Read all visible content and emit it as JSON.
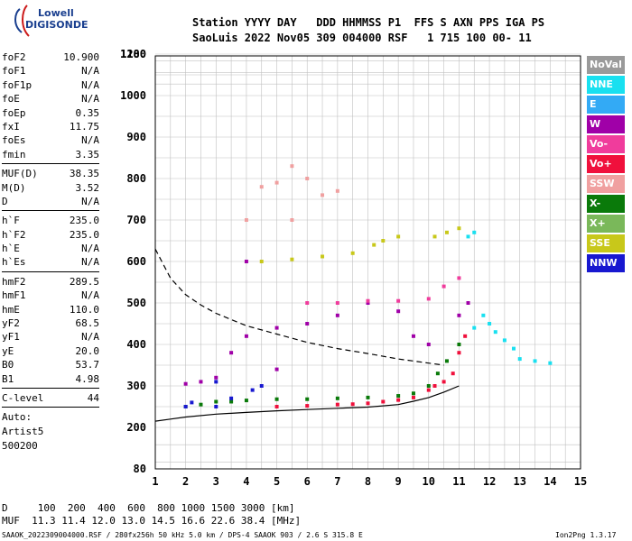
{
  "logo": {
    "line1": "Lowell",
    "line2": "DIGISONDE"
  },
  "header": {
    "line1": "Station YYYY DAY   DDD HHMMSS P1  FFS S AXN PPS IGA PS",
    "line2": "SaoLuis 2022 Nov05 309 004000 RSF   1 715 100 00- 11"
  },
  "params": [
    [
      {
        "k": "foF2",
        "v": "10.900"
      },
      {
        "k": "foF1",
        "v": "N/A"
      },
      {
        "k": "foF1p",
        "v": "N/A"
      },
      {
        "k": "foE",
        "v": "N/A"
      },
      {
        "k": "foEp",
        "v": "0.35"
      },
      {
        "k": "fxI",
        "v": "11.75"
      },
      {
        "k": "foEs",
        "v": "N/A"
      },
      {
        "k": "fmin",
        "v": "3.35"
      }
    ],
    [
      {
        "k": "MUF(D)",
        "v": "38.35"
      },
      {
        "k": "M(D)",
        "v": "3.52"
      },
      {
        "k": "D",
        "v": "N/A"
      }
    ],
    [
      {
        "k": "h`F",
        "v": "235.0"
      },
      {
        "k": "h`F2",
        "v": "235.0"
      },
      {
        "k": "h`E",
        "v": "N/A"
      },
      {
        "k": "h`Es",
        "v": "N/A"
      }
    ],
    [
      {
        "k": "hmF2",
        "v": "289.5"
      },
      {
        "k": "hmF1",
        "v": "N/A"
      },
      {
        "k": "hmE",
        "v": "110.0"
      },
      {
        "k": "yF2",
        "v": "68.5"
      },
      {
        "k": "yF1",
        "v": "N/A"
      },
      {
        "k": "yE",
        "v": "20.0"
      },
      {
        "k": "B0",
        "v": "53.7"
      },
      {
        "k": "B1",
        "v": "4.98"
      }
    ],
    [
      {
        "k": "C-level",
        "v": "44"
      }
    ]
  ],
  "auto": {
    "l1": "Auto:",
    "l2": "Artist5",
    "l3": "500200"
  },
  "legend": [
    {
      "label": "NoVal",
      "color": "#9a9a9a"
    },
    {
      "label": "NNE",
      "color": "#19e0f0"
    },
    {
      "label": "E",
      "color": "#33aaf5"
    },
    {
      "label": "W",
      "color": "#a000a8"
    },
    {
      "label": "Vo-",
      "color": "#f03c9c"
    },
    {
      "label": "Vo+",
      "color": "#f0103c"
    },
    {
      "label": "SSW",
      "color": "#f0a0a0"
    },
    {
      "label": "X-",
      "color": "#0a7a0a"
    },
    {
      "label": "X+",
      "color": "#7ab85a"
    },
    {
      "label": "SSE",
      "color": "#c8c81a"
    },
    {
      "label": "NNW",
      "color": "#1818d0"
    }
  ],
  "bottom": {
    "d_line": "D     100  200  400  600  800 1000 1500 3000 [km]",
    "muf_line": "MUF  11.3 11.4 12.0 13.0 14.5 16.6 22.6 38.4 [MHz]",
    "footer_left": "SAAOK_2022309004000.RSF / 280fx256h 50 kHz 5.0 km / DPS-4 SAAOK 903 / 2.6 S 315.8 E",
    "footer_right": "Ion2Png 1.3.17"
  },
  "chart_data": {
    "type": "scatter",
    "x_ticks": [
      "1",
      "2",
      "3",
      "4",
      "5",
      "6",
      "7",
      "8",
      "9",
      "10",
      "11",
      "12",
      "13",
      "14",
      "15"
    ],
    "y_ticks": [
      "80",
      "200",
      "300",
      "400",
      "500",
      "600",
      "700",
      "800",
      "900",
      "1000",
      "1100",
      "1280"
    ],
    "xlim": [
      1,
      15
    ],
    "ylim": [
      80,
      1280
    ],
    "grid": true,
    "series": [
      {
        "name": "X-",
        "color": "#0a7a0a",
        "points": [
          [
            2.0,
            250
          ],
          [
            2.5,
            255
          ],
          [
            3.0,
            262
          ],
          [
            3.5,
            262
          ],
          [
            4.0,
            265
          ],
          [
            5.0,
            268
          ],
          [
            6.0,
            268
          ],
          [
            7.0,
            270
          ],
          [
            8.0,
            272
          ],
          [
            9.0,
            276
          ],
          [
            9.5,
            282
          ],
          [
            10.0,
            300
          ],
          [
            10.3,
            330
          ],
          [
            10.6,
            360
          ],
          [
            11.0,
            400
          ]
        ]
      },
      {
        "name": "Vo+",
        "color": "#f0103c",
        "points": [
          [
            5.0,
            250
          ],
          [
            6.0,
            252
          ],
          [
            7.0,
            255
          ],
          [
            7.5,
            256
          ],
          [
            8.0,
            258
          ],
          [
            8.5,
            262
          ],
          [
            9.0,
            266
          ],
          [
            9.5,
            272
          ],
          [
            10.0,
            290
          ],
          [
            10.2,
            300
          ],
          [
            10.5,
            310
          ],
          [
            10.8,
            330
          ],
          [
            11.0,
            380
          ],
          [
            11.2,
            420
          ]
        ]
      },
      {
        "name": "W",
        "color": "#a000a8",
        "points": [
          [
            2.0,
            305
          ],
          [
            2.5,
            310
          ],
          [
            3.0,
            320
          ],
          [
            3.5,
            380
          ],
          [
            4.0,
            420
          ],
          [
            4.0,
            600
          ],
          [
            5.0,
            440
          ],
          [
            5.0,
            340
          ],
          [
            6.0,
            450
          ],
          [
            7.0,
            470
          ],
          [
            8.0,
            500
          ],
          [
            9.0,
            480
          ],
          [
            9.5,
            420
          ],
          [
            10.0,
            400
          ],
          [
            11.0,
            470
          ],
          [
            11.3,
            500
          ]
        ]
      },
      {
        "name": "NNE",
        "color": "#19e0f0",
        "points": [
          [
            11.5,
            440
          ],
          [
            11.8,
            470
          ],
          [
            12.0,
            450
          ],
          [
            12.2,
            430
          ],
          [
            12.5,
            410
          ],
          [
            12.8,
            390
          ],
          [
            13.0,
            365
          ],
          [
            13.5,
            360
          ],
          [
            14.0,
            355
          ],
          [
            11.3,
            660
          ],
          [
            11.5,
            670
          ]
        ]
      },
      {
        "name": "SSE",
        "color": "#c8c81a",
        "points": [
          [
            4.5,
            600
          ],
          [
            5.5,
            605
          ],
          [
            6.5,
            612
          ],
          [
            7.5,
            620
          ],
          [
            8.2,
            640
          ],
          [
            8.5,
            650
          ],
          [
            9.0,
            660
          ],
          [
            10.2,
            660
          ],
          [
            10.6,
            670
          ],
          [
            11.0,
            680
          ]
        ]
      },
      {
        "name": "SSW",
        "color": "#f0a0a0",
        "points": [
          [
            4.5,
            780
          ],
          [
            5.0,
            790
          ],
          [
            5.5,
            830
          ],
          [
            6.0,
            800
          ],
          [
            6.5,
            760
          ],
          [
            7.0,
            770
          ],
          [
            4.0,
            700
          ],
          [
            5.5,
            700
          ]
        ]
      },
      {
        "name": "NNW",
        "color": "#1818d0",
        "points": [
          [
            2.0,
            250
          ],
          [
            2.2,
            260
          ],
          [
            3.0,
            250
          ],
          [
            3.5,
            270
          ],
          [
            4.2,
            290
          ],
          [
            4.5,
            300
          ],
          [
            3.0,
            310
          ]
        ]
      },
      {
        "name": "Vo-",
        "color": "#f03c9c",
        "points": [
          [
            6.0,
            500
          ],
          [
            7.0,
            500
          ],
          [
            8.0,
            505
          ],
          [
            9.0,
            505
          ],
          [
            10.0,
            510
          ],
          [
            10.5,
            540
          ],
          [
            11.0,
            560
          ]
        ]
      }
    ],
    "curves": [
      {
        "name": "profile",
        "style": "solid",
        "points": [
          [
            1,
            215
          ],
          [
            1.5,
            220
          ],
          [
            2,
            225
          ],
          [
            3,
            232
          ],
          [
            4,
            236
          ],
          [
            5,
            240
          ],
          [
            6,
            243
          ],
          [
            7,
            246
          ],
          [
            8,
            249
          ],
          [
            9,
            255
          ],
          [
            9.5,
            263
          ],
          [
            10,
            272
          ],
          [
            10.5,
            285
          ],
          [
            11,
            300
          ]
        ]
      },
      {
        "name": "dashed",
        "style": "dashed",
        "points": [
          [
            1,
            630
          ],
          [
            1.5,
            560
          ],
          [
            2,
            520
          ],
          [
            2.5,
            495
          ],
          [
            3,
            475
          ],
          [
            4,
            445
          ],
          [
            5,
            425
          ],
          [
            6,
            405
          ],
          [
            7,
            390
          ],
          [
            8,
            378
          ],
          [
            9,
            365
          ],
          [
            10,
            355
          ],
          [
            10.5,
            350
          ]
        ]
      }
    ]
  }
}
